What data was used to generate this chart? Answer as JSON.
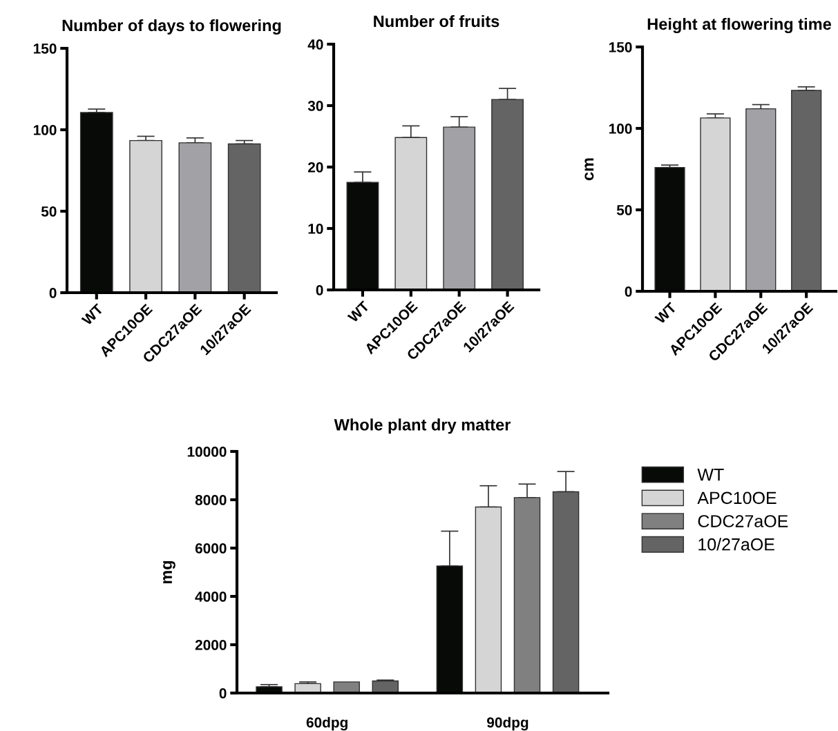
{
  "chart_data": [
    {
      "type": "bar",
      "title": "Number of days to flowering",
      "categories": [
        "WT",
        "APC10OE",
        "CDC27aOE",
        "10/27aOE"
      ],
      "values": [
        110.6,
        93.4,
        92,
        91.3
      ],
      "errors": [
        [
          110.6,
          112.7
        ],
        [
          93.4,
          96
        ],
        [
          92,
          95
        ],
        [
          91.3,
          93.4
        ]
      ],
      "colors": [
        "#080a08",
        "#d5d5d5",
        "#a2a1a5",
        "#646464"
      ],
      "ylim": [
        0,
        150
      ],
      "yticks": [
        0,
        50,
        100,
        150
      ],
      "grid": false
    },
    {
      "type": "bar",
      "title": "Number of fruits",
      "categories": [
        "WT",
        "APC10OE",
        "CDC27aOE",
        "10/27aOE"
      ],
      "values": [
        17.5,
        24.8,
        26.5,
        31.0
      ],
      "errors": [
        [
          17.5,
          19.2
        ],
        [
          24.8,
          26.7
        ],
        [
          26.5,
          28.2
        ],
        [
          31.0,
          32.8
        ]
      ],
      "colors": [
        "#080a08",
        "#d5d5d5",
        "#a2a1a5",
        "#646464"
      ],
      "ylim": [
        0,
        40
      ],
      "yticks": [
        0,
        10,
        20,
        30,
        40
      ],
      "grid": false
    },
    {
      "type": "bar",
      "title": "Height at flowering time",
      "ylabel": "cm",
      "categories": [
        "WT",
        "APC10OE",
        "CDC27aOE",
        "10/27aOE"
      ],
      "values": [
        76,
        106.4,
        112,
        123.3
      ],
      "errors": [
        [
          76,
          77.5
        ],
        [
          106.4,
          108.9
        ],
        [
          112,
          114.6
        ],
        [
          123.3,
          125.5
        ]
      ],
      "colors": [
        "#080a08",
        "#d5d5d5",
        "#a2a1a5",
        "#646464"
      ],
      "ylim": [
        0,
        150
      ],
      "yticks": [
        0,
        50,
        100,
        150
      ],
      "grid": false
    },
    {
      "type": "bar",
      "title": "Whole plant dry matter",
      "ylabel": "mg",
      "categories": [
        "60dpg",
        "90dpg"
      ],
      "series": [
        {
          "name": "WT",
          "color": "#080a08",
          "values": [
            260,
            5260
          ],
          "errors": [
            [
              260,
              350
            ],
            [
              5260,
              6700
            ]
          ]
        },
        {
          "name": "APC10OE",
          "color": "#d5d5d5",
          "values": [
            390,
            7700
          ],
          "errors": [
            [
              390,
              460
            ],
            [
              7700,
              8580
            ]
          ]
        },
        {
          "name": "CDC27aOE",
          "color": "#808080",
          "values": [
            460,
            8090
          ],
          "errors": [
            null,
            [
              8090,
              8650
            ]
          ]
        },
        {
          "name": "10/27aOE",
          "color": "#646464",
          "values": [
            500,
            8330
          ],
          "errors": [
            [
              500,
              536
            ],
            [
              8330,
              9170
            ]
          ]
        }
      ],
      "ylim": [
        0,
        10000
      ],
      "yticks": [
        0,
        2000,
        4000,
        6000,
        8000,
        10000
      ],
      "grid": false,
      "legend": "right"
    }
  ]
}
